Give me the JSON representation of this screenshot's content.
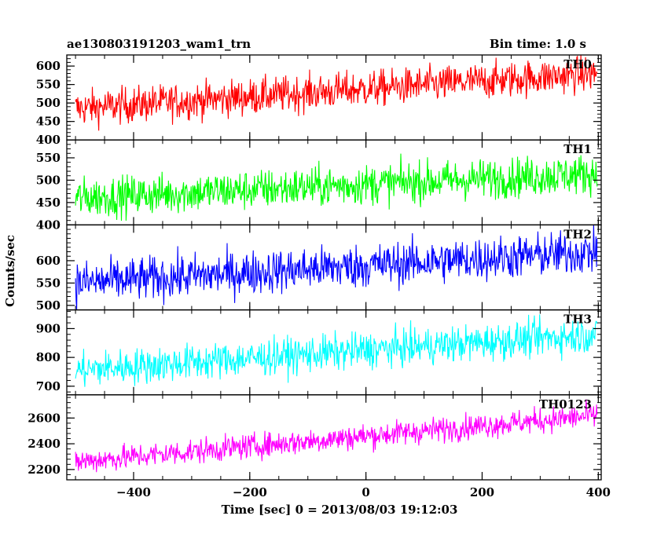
{
  "chart_data": {
    "type": "line",
    "title": "ae130803191203_wam1_trn",
    "subtitle": "Bin time: 1.0 s",
    "xlabel": "Time [sec] 0 = 2013/08/03 19:12:03",
    "ylabel": "Counts/sec",
    "xlim": [
      -515,
      405
    ],
    "xticks": [
      -400,
      -200,
      0,
      200,
      400
    ],
    "x_range": [
      -500,
      398
    ],
    "panels": [
      {
        "name": "TH0",
        "color": "#ff0000",
        "ylim": [
          400,
          630
        ],
        "yticks": [
          400,
          450,
          500,
          550,
          600
        ],
        "trend_start": 485,
        "trend_end": 580,
        "noise": 35
      },
      {
        "name": "TH1",
        "color": "#00ff00",
        "ylim": [
          400,
          590
        ],
        "yticks": [
          400,
          450,
          500,
          550
        ],
        "trend_start": 460,
        "trend_end": 515,
        "noise": 32
      },
      {
        "name": "TH2",
        "color": "#0000ff",
        "ylim": [
          490,
          680
        ],
        "yticks": [
          500,
          550,
          600
        ],
        "trend_start": 550,
        "trend_end": 620,
        "noise": 35
      },
      {
        "name": "TH3",
        "color": "#00ffff",
        "ylim": [
          670,
          965
        ],
        "yticks": [
          700,
          800,
          900
        ],
        "trend_start": 755,
        "trend_end": 880,
        "noise": 45
      },
      {
        "name": "TH0123",
        "color": "#ff00ff",
        "ylim": [
          2120,
          2780
        ],
        "yticks": [
          2200,
          2400,
          2600
        ],
        "trend_start": 2260,
        "trend_end": 2620,
        "noise": 70
      }
    ]
  }
}
